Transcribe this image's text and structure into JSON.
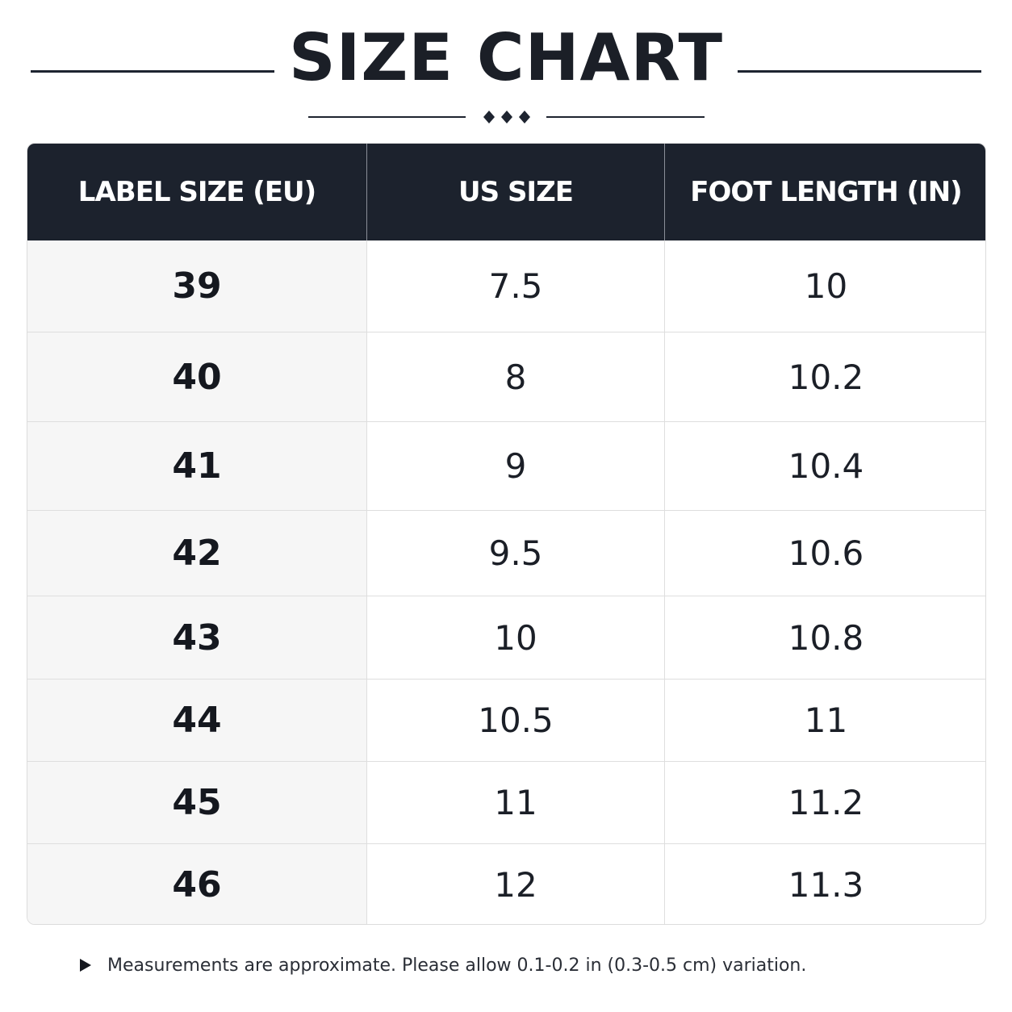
{
  "title": "SIZE CHART",
  "table": {
    "headers": [
      "LABEL SIZE (EU)",
      "US SIZE",
      "FOOT LENGTH (IN)"
    ],
    "rows": [
      {
        "eu": "39",
        "us": "7.5",
        "length": "10"
      },
      {
        "eu": "40",
        "us": "8",
        "length": "10.2"
      },
      {
        "eu": "41",
        "us": "9",
        "length": "10.4"
      },
      {
        "eu": "42",
        "us": "9.5",
        "length": "10.6"
      },
      {
        "eu": "43",
        "us": "10",
        "length": "10.8"
      },
      {
        "eu": "44",
        "us": "10.5",
        "length": "11"
      },
      {
        "eu": "45",
        "us": "11",
        "length": "11.2"
      },
      {
        "eu": "46",
        "us": "12",
        "length": "11.3"
      }
    ]
  },
  "note": {
    "icon": "play-arrow-icon",
    "text": "Measurements are approximate. Please allow 0.1-0.2 in (0.3-0.5 cm) variation."
  },
  "colors": {
    "header_bg": "#1c222d",
    "text": "#1b1f27",
    "first_col_bg": "#f6f6f6"
  }
}
